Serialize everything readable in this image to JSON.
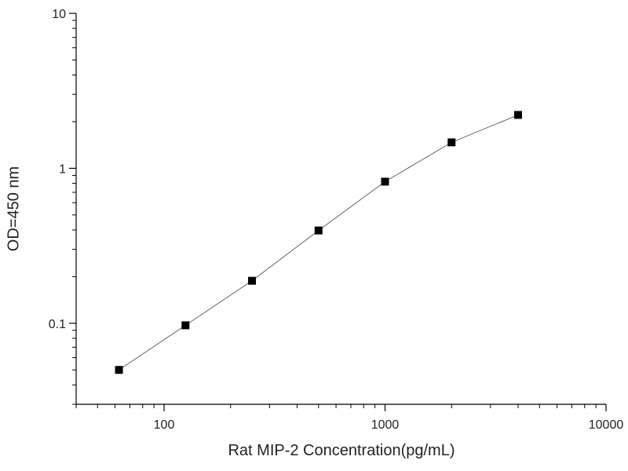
{
  "chart_data": {
    "type": "line",
    "xlabel": "Rat MIP-2 Concentration(pg/mL)",
    "ylabel": "OD=450 nm",
    "x": [
      62.5,
      125,
      250,
      500,
      1000,
      2000,
      4000
    ],
    "series": [
      {
        "color": "#000000",
        "values": [
          0.05,
          0.097,
          0.188,
          0.397,
          0.82,
          1.47,
          2.21
        ]
      }
    ],
    "xscale": "log",
    "yscale": "log",
    "xlim": [
      40,
      10000
    ],
    "xticks": [
      100,
      1000,
      10000
    ],
    "ylim": [
      0.03,
      10
    ],
    "yticks": [
      0.1,
      1,
      10
    ]
  }
}
